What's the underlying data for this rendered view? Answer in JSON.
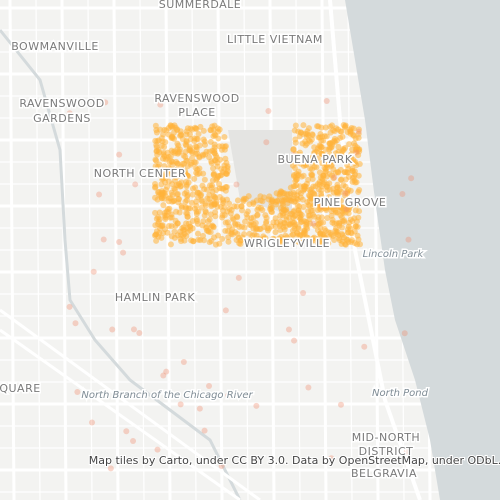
{
  "map": {
    "labels": [
      {
        "text": "SUMMERDALE"
      },
      {
        "text": "BOWMANVILLE"
      },
      {
        "text": "LITTLE VIETNAM"
      },
      {
        "text": "RAVENSWOOD"
      },
      {
        "text": "GARDENS"
      },
      {
        "text": "RAVENSWOOD"
      },
      {
        "text": "PLACE"
      },
      {
        "text": "NORTH CENTER"
      },
      {
        "text": "BUENA PARK"
      },
      {
        "text": "PINE GROVE"
      },
      {
        "text": "WRIGLEYVILLE"
      },
      {
        "text": "Lincoln Park"
      },
      {
        "text": "HAMLIN PARK"
      },
      {
        "text": "QUARE"
      },
      {
        "text": "North Branch of the Chicago River"
      },
      {
        "text": "North Pond"
      },
      {
        "text": "MID-NORTH"
      },
      {
        "text": "DISTRICT"
      },
      {
        "text": "BELGRAVIA"
      }
    ],
    "attribution": "Map tiles by Carto, under CC BY 3.0. Data by OpenStreetMap, under ODbL."
  }
}
